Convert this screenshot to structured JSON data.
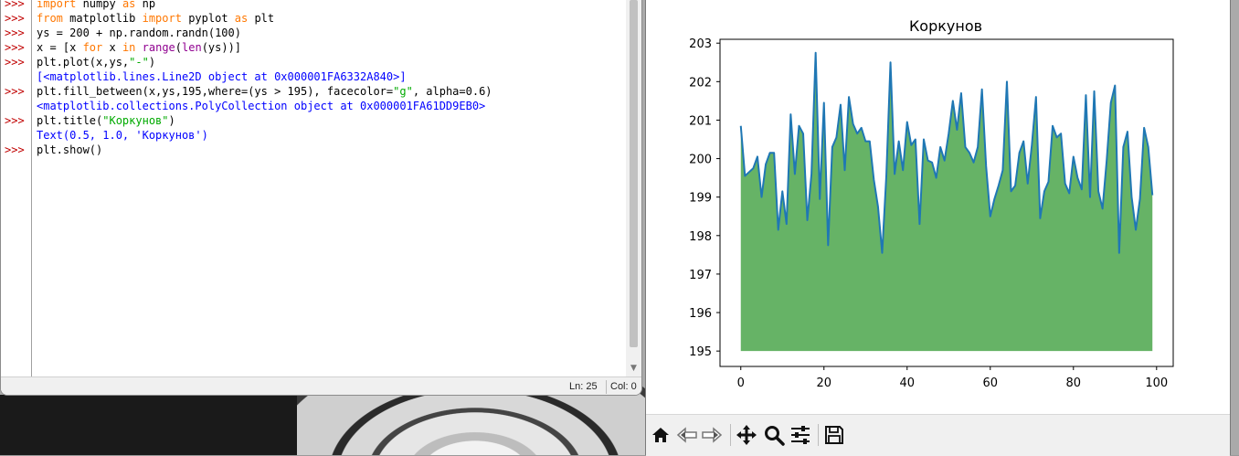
{
  "shell": {
    "prompt": ">>>",
    "lines": [
      {
        "parts": [
          {
            "t": "import",
            "c": "kw"
          },
          {
            "t": " numpy ",
            "c": ""
          },
          {
            "t": "as",
            "c": "kw"
          },
          {
            "t": " np",
            "c": ""
          }
        ],
        "prompt": true
      },
      {
        "parts": [
          {
            "t": "from",
            "c": "kw"
          },
          {
            "t": " matplotlib ",
            "c": ""
          },
          {
            "t": "import",
            "c": "kw"
          },
          {
            "t": " pyplot ",
            "c": ""
          },
          {
            "t": "as",
            "c": "kw"
          },
          {
            "t": " plt",
            "c": ""
          }
        ],
        "prompt": true
      },
      {
        "parts": [
          {
            "t": "ys = 200 + np.random.randn(100)",
            "c": ""
          }
        ],
        "prompt": true
      },
      {
        "parts": [
          {
            "t": "x = [x ",
            "c": ""
          },
          {
            "t": "for",
            "c": "kw"
          },
          {
            "t": " x ",
            "c": ""
          },
          {
            "t": "in",
            "c": "kw"
          },
          {
            "t": " ",
            "c": ""
          },
          {
            "t": "range",
            "c": "bi"
          },
          {
            "t": "(",
            "c": ""
          },
          {
            "t": "len",
            "c": "bi"
          },
          {
            "t": "(ys))]",
            "c": ""
          }
        ],
        "prompt": true
      },
      {
        "parts": [
          {
            "t": "plt.plot(x,ys,",
            "c": ""
          },
          {
            "t": "\"-\"",
            "c": "str"
          },
          {
            "t": ")",
            "c": ""
          }
        ],
        "prompt": true
      },
      {
        "parts": [
          {
            "t": "[<matplotlib.lines.Line2D object at 0x000001FA6332A840>]",
            "c": "out"
          }
        ],
        "prompt": false
      },
      {
        "parts": [
          {
            "t": "plt.fill_between(x,ys,195,where=(ys > 195), facecolor=",
            "c": ""
          },
          {
            "t": "\"g\"",
            "c": "str"
          },
          {
            "t": ", alpha=0.6)",
            "c": ""
          }
        ],
        "prompt": true
      },
      {
        "parts": [
          {
            "t": "<matplotlib.collections.PolyCollection object at 0x000001FA61DD9EB0>",
            "c": "out"
          }
        ],
        "prompt": false
      },
      {
        "parts": [
          {
            "t": "plt.title(",
            "c": ""
          },
          {
            "t": "\"Коркунов\"",
            "c": "str"
          },
          {
            "t": ")",
            "c": ""
          }
        ],
        "prompt": true
      },
      {
        "parts": [
          {
            "t": "Text(0.5, 1.0, 'Коркунов')",
            "c": "out"
          }
        ],
        "prompt": false
      },
      {
        "parts": [
          {
            "t": "plt.show()",
            "c": ""
          }
        ],
        "prompt": true
      }
    ]
  },
  "status": {
    "line": "Ln: 25",
    "col": "Col: 0"
  },
  "chart_data": {
    "type": "area",
    "title": "Коркунов",
    "xlim": [
      -5,
      104
    ],
    "ylim": [
      194.6,
      203.1
    ],
    "xticks": [
      0,
      20,
      40,
      60,
      80,
      100
    ],
    "yticks": [
      195,
      196,
      197,
      198,
      199,
      200,
      201,
      202,
      203
    ],
    "fill_baseline": 195,
    "line_color": "#1f77b4",
    "fill_color": "#008000",
    "fill_alpha": 0.6,
    "series": [
      {
        "x": [
          0,
          1,
          2,
          3,
          4,
          5,
          6,
          7,
          8,
          9,
          10,
          11,
          12,
          13,
          14,
          15,
          16,
          17,
          18,
          19,
          20,
          21,
          22,
          23,
          24,
          25,
          26,
          27,
          28,
          29,
          30,
          31,
          32,
          33,
          34,
          35,
          36,
          37,
          38,
          39,
          40,
          41,
          42,
          43,
          44,
          45,
          46,
          47,
          48,
          49,
          50,
          51,
          52,
          53,
          54,
          55,
          56,
          57,
          58,
          59,
          60,
          61,
          62,
          63,
          64,
          65,
          66,
          67,
          68,
          69,
          70,
          71,
          72,
          73,
          74,
          75,
          76,
          77,
          78,
          79,
          80,
          81,
          82,
          83,
          84,
          85,
          86,
          87,
          88,
          89,
          90,
          91,
          92,
          93,
          94,
          95,
          96,
          97,
          98,
          99
        ],
        "values": [
          200.85,
          199.55,
          199.65,
          199.75,
          200.05,
          199.0,
          199.85,
          200.15,
          200.15,
          198.15,
          199.15,
          198.3,
          201.15,
          199.6,
          200.85,
          200.65,
          198.4,
          199.6,
          202.75,
          198.95,
          201.45,
          197.75,
          200.3,
          200.55,
          201.4,
          199.7,
          201.6,
          200.9,
          200.65,
          200.8,
          200.45,
          200.45,
          199.45,
          198.75,
          197.55,
          199.55,
          202.5,
          199.6,
          200.45,
          199.7,
          200.95,
          200.35,
          200.5,
          198.3,
          200.5,
          199.95,
          199.9,
          199.5,
          200.3,
          199.95,
          200.65,
          201.5,
          200.75,
          201.7,
          200.3,
          200.15,
          199.9,
          200.3,
          201.8,
          199.8,
          198.5,
          198.95,
          199.3,
          199.7,
          202.0,
          199.15,
          199.3,
          200.15,
          200.45,
          199.35,
          200.35,
          201.6,
          198.45,
          199.15,
          199.4,
          200.85,
          200.55,
          200.65,
          199.35,
          199.1,
          200.05,
          199.5,
          199.2,
          201.65,
          199.0,
          201.75,
          199.15,
          198.7,
          199.95,
          201.45,
          201.9,
          197.55,
          200.3,
          200.7,
          199.0,
          198.15,
          198.95,
          200.8,
          200.3,
          199.05
        ]
      }
    ]
  },
  "toolbar": {
    "icons": [
      "home-icon",
      "back-icon",
      "forward-icon",
      "pan-icon",
      "zoom-icon",
      "configure-icon",
      "save-icon"
    ]
  }
}
